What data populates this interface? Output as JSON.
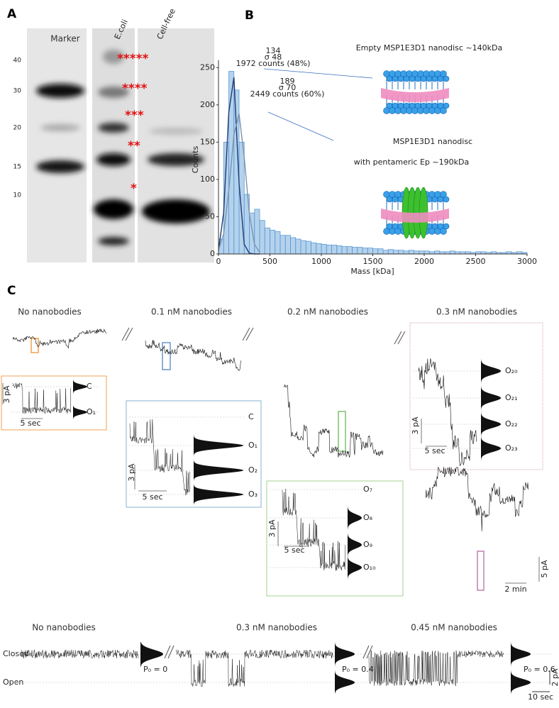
{
  "panel_labels": [
    "A",
    "B",
    "C"
  ],
  "gel": {
    "lanes": [
      "Marker",
      "E.coli",
      "Cell-free"
    ],
    "marker_kda": [
      "40",
      "30",
      "20",
      "15",
      "10"
    ],
    "stars": [
      "*****",
      "****",
      "***",
      "**",
      "*"
    ]
  },
  "chart_data": {
    "type": "histogram",
    "x_label": "Mass [kDa]",
    "y_label": "Counts",
    "bins": [
      0,
      50,
      100,
      150,
      200,
      250,
      300,
      350,
      400,
      450,
      500,
      550,
      600,
      650,
      700,
      750,
      800,
      850,
      900,
      950,
      1000,
      1050,
      1100,
      1150,
      1200,
      1250,
      1300,
      1350,
      1400,
      1450,
      1500,
      1550,
      1600,
      1650,
      1700,
      1750,
      1800,
      1850,
      1900,
      1950,
      2000,
      2050,
      2100,
      2150,
      2200,
      2250,
      2300,
      2350,
      2400,
      2450,
      2500,
      2550,
      2600,
      2650,
      2700,
      2750,
      2800,
      2850,
      2900,
      2950,
      3000
    ],
    "counts": [
      20,
      150,
      245,
      220,
      150,
      80,
      55,
      60,
      45,
      35,
      32,
      30,
      25,
      25,
      22,
      20,
      18,
      17,
      15,
      14,
      13,
      12,
      12,
      11,
      10,
      10,
      9,
      9,
      8,
      8,
      7,
      7,
      5,
      6,
      5,
      5,
      4,
      5,
      4,
      4,
      4,
      3,
      4,
      3,
      3,
      4,
      3,
      3,
      3,
      2,
      3,
      3,
      2,
      3,
      2,
      2,
      3,
      2,
      3,
      2
    ],
    "color": "#5b9bd5",
    "lines": [
      {
        "color": "#1f3b73",
        "x": [
          0,
          50,
          100,
          150,
          200,
          250,
          300,
          350,
          400
        ],
        "values": [
          5,
          55,
          190,
          237,
          95,
          13,
          1,
          0,
          0
        ]
      },
      {
        "color": "#7a93ad",
        "x": [
          0,
          50,
          100,
          150,
          200,
          250,
          300,
          350,
          400
        ],
        "values": [
          5,
          27,
          85,
          160,
          188,
          130,
          54,
          13,
          2
        ]
      }
    ],
    "xlim": [
      0,
      3000
    ],
    "ylim": [
      0,
      260
    ],
    "xticks": [
      0,
      500,
      1000,
      1500,
      2000,
      2500,
      3000
    ],
    "yticks": [
      0,
      50,
      100,
      150,
      200,
      250
    ],
    "annotations": [
      [
        "134",
        "σ 48",
        "1972 counts (48%)"
      ],
      [
        "189",
        "σ 70",
        "2449 counts (60%)"
      ]
    ],
    "callouts": [
      "Empty MSP1E3D1 nanodisc ~140kDa",
      "MSP1E3D1 nanodisc",
      "with pentameric Ep ~190kDa"
    ]
  },
  "panel_c": {
    "titles": [
      "No nanobodies",
      "0.1 nM nanobodies",
      "0.2 nM nanobodies",
      "0.3 nM nanobodies"
    ],
    "inset_0": {
      "levels": [
        "C",
        "O₁"
      ],
      "scale_y": "3 pA",
      "scale_x": "5 sec"
    },
    "inset_1": {
      "levels": [
        "C",
        "O₁",
        "O₂",
        "O₃"
      ],
      "scale_y": "3 pA",
      "scale_x": "5 sec"
    },
    "inset_2": {
      "levels": [
        "O₇",
        "O₈",
        "O₉",
        "O₁₀"
      ],
      "scale_y": "3 pA",
      "scale_x": "5 sec"
    },
    "inset_3": {
      "levels": [
        "O₂₀",
        "O₂₁",
        "O₂₂",
        "O₂₃"
      ],
      "scale_y": "3 pA",
      "scale_x": "5 sec"
    },
    "overview_scale": [
      "5 pA",
      "2 min"
    ],
    "bottom": {
      "titles": [
        "No nanobodies",
        "0.3 nM nanobodies",
        "0.45 nM nanobodies"
      ],
      "states": [
        "Closed",
        "Open"
      ],
      "po": [
        "P₀ = 0",
        "P₀ = 0.4",
        "P₀ = 0.6"
      ],
      "scale_y": "2 pA",
      "scale_x": "10 sec"
    }
  }
}
